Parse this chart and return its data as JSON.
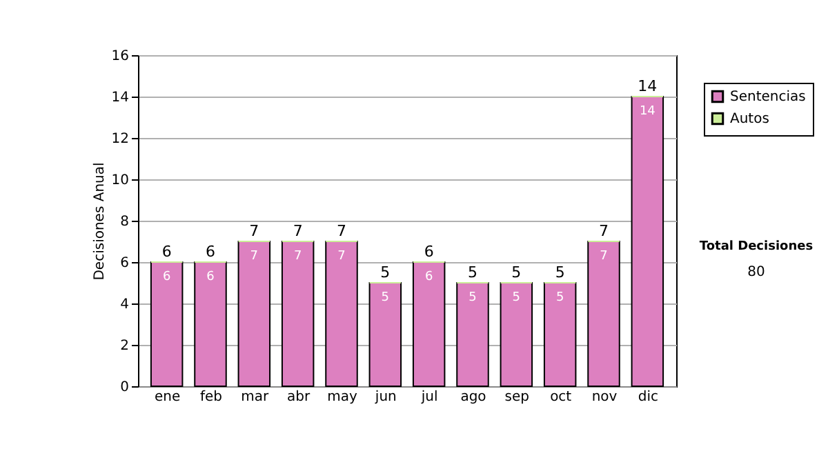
{
  "chart_data": {
    "type": "bar",
    "ylabel": "Decisiones Anual",
    "categories": [
      "ene",
      "feb",
      "mar",
      "abr",
      "may",
      "jun",
      "jul",
      "ago",
      "sep",
      "oct",
      "nov",
      "dic"
    ],
    "stacked": true,
    "series": [
      {
        "name": "Sentencias",
        "color": "#dd80c0",
        "values": [
          6,
          6,
          7,
          7,
          7,
          5,
          6,
          5,
          5,
          5,
          7,
          14
        ],
        "value_labels": [
          "6",
          "6",
          "7",
          "7",
          "7",
          "5",
          "6",
          "5",
          "5",
          "5",
          "7",
          "14"
        ]
      },
      {
        "name": "Autos",
        "color": "#ccee99",
        "values": [
          0,
          0,
          0,
          0,
          0,
          0,
          0,
          0,
          0,
          0,
          0,
          0
        ]
      }
    ],
    "totals": [
      "6",
      "6",
      "7",
      "7",
      "7",
      "5",
      "6",
      "5",
      "5",
      "5",
      "7",
      "14"
    ],
    "ylim": [
      0,
      16
    ],
    "yticks": [
      0,
      2,
      4,
      6,
      8,
      10,
      12,
      14,
      16
    ],
    "grid": "y",
    "legend": "right",
    "annotations": [
      "Total Decisiones",
      "80"
    ]
  }
}
